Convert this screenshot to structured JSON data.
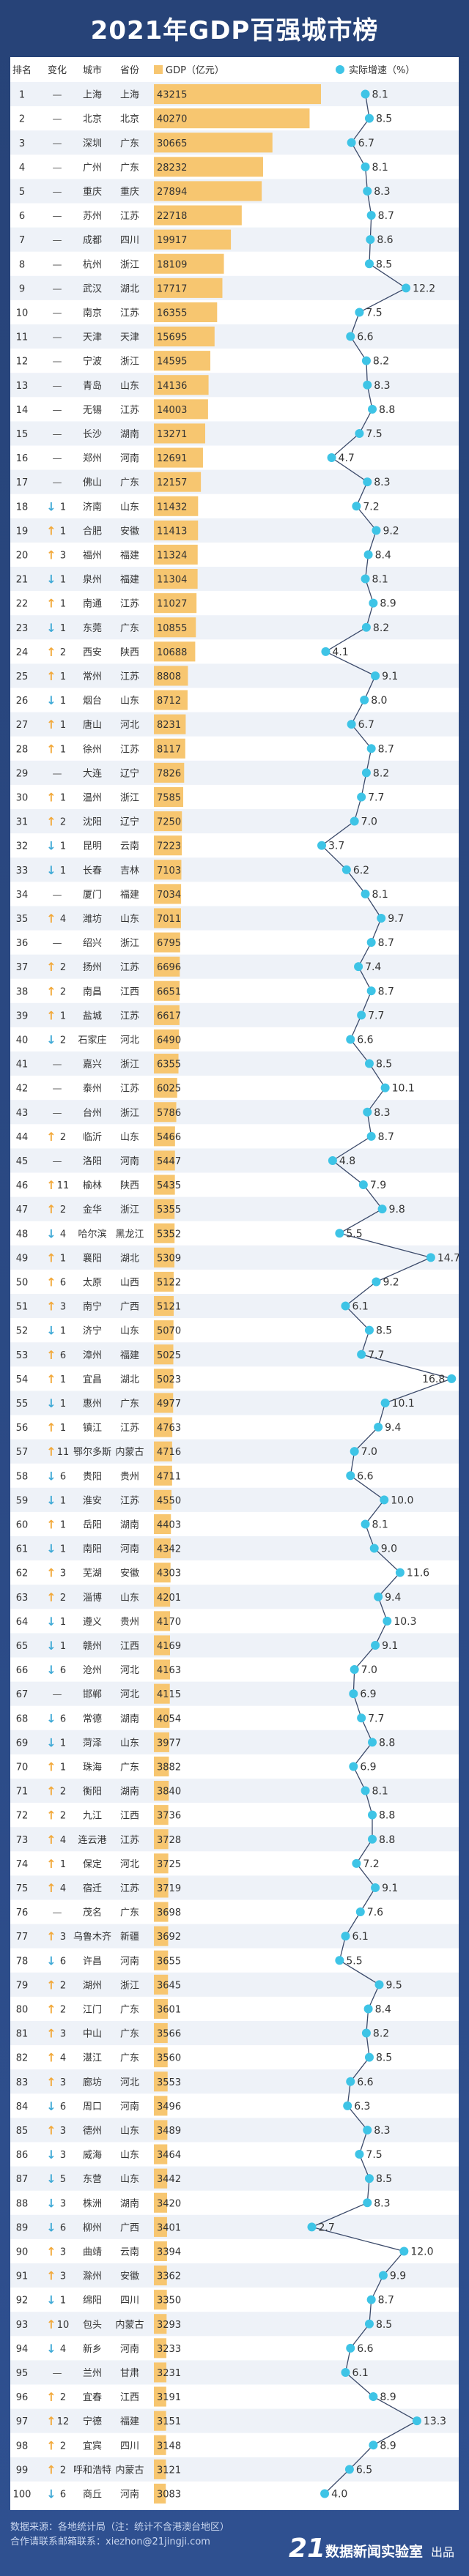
{
  "title": "2021年GDP百强城市榜",
  "colors": {
    "bar": "#f7c670",
    "line": "#3b4a6a",
    "dot": "#3ec4e6",
    "bg": "#2b4a84"
  },
  "footer": {
    "source": "数据来源：各地统计局（注：统计不含港澳台地区）",
    "contact": "合作请联系邮箱联系：xiezhon@21jingji.com",
    "logo_mark": "21",
    "logo_text": "数据新闻实验室",
    "logo_suffix": "出品"
  },
  "chart_data": {
    "type": "bar",
    "title": "2021年GDP百强城市榜",
    "headers": [
      "排名",
      "变化",
      "城市",
      "省份",
      "GDP（亿元）",
      "实际增速（%）"
    ],
    "legend": [
      {
        "name": "GDP（亿元）",
        "marker": "bar"
      },
      {
        "name": "实际增速（%）",
        "marker": "dot"
      }
    ],
    "change_legend": {
      "up": "上升",
      "down": "下降",
      "same": "—"
    },
    "rows": [
      {
        "rank": 1,
        "change": "—",
        "city": "上海",
        "province": "上海",
        "gdp": 43215,
        "growth": 8.1
      },
      {
        "rank": 2,
        "change": "—",
        "city": "北京",
        "province": "北京",
        "gdp": 40270,
        "growth": 8.5
      },
      {
        "rank": 3,
        "change": "—",
        "city": "深圳",
        "province": "广东",
        "gdp": 30665,
        "growth": 6.7
      },
      {
        "rank": 4,
        "change": "—",
        "city": "广州",
        "province": "广东",
        "gdp": 28232,
        "growth": 8.1
      },
      {
        "rank": 5,
        "change": "—",
        "city": "重庆",
        "province": "重庆",
        "gdp": 27894,
        "growth": 8.3
      },
      {
        "rank": 6,
        "change": "—",
        "city": "苏州",
        "province": "江苏",
        "gdp": 22718,
        "growth": 8.7
      },
      {
        "rank": 7,
        "change": "—",
        "city": "成都",
        "province": "四川",
        "gdp": 19917,
        "growth": 8.6
      },
      {
        "rank": 8,
        "change": "—",
        "city": "杭州",
        "province": "浙江",
        "gdp": 18109,
        "growth": 8.5
      },
      {
        "rank": 9,
        "change": "—",
        "city": "武汉",
        "province": "湖北",
        "gdp": 17717,
        "growth": 12.2
      },
      {
        "rank": 10,
        "change": "—",
        "city": "南京",
        "province": "江苏",
        "gdp": 16355,
        "growth": 7.5
      },
      {
        "rank": 11,
        "change": "—",
        "city": "天津",
        "province": "天津",
        "gdp": 15695,
        "growth": 6.6
      },
      {
        "rank": 12,
        "change": "—",
        "city": "宁波",
        "province": "浙江",
        "gdp": 14595,
        "growth": 8.2
      },
      {
        "rank": 13,
        "change": "—",
        "city": "青岛",
        "province": "山东",
        "gdp": 14136,
        "growth": 8.3
      },
      {
        "rank": 14,
        "change": "—",
        "city": "无锡",
        "province": "江苏",
        "gdp": 14003,
        "growth": 8.8
      },
      {
        "rank": 15,
        "change": "—",
        "city": "长沙",
        "province": "湖南",
        "gdp": 13271,
        "growth": 7.5
      },
      {
        "rank": 16,
        "change": "—",
        "city": "郑州",
        "province": "河南",
        "gdp": 12691,
        "growth": 4.7
      },
      {
        "rank": 17,
        "change": "—",
        "city": "佛山",
        "province": "广东",
        "gdp": 12157,
        "growth": 8.3
      },
      {
        "rank": 18,
        "change": "↓1",
        "city": "济南",
        "province": "山东",
        "gdp": 11432,
        "growth": 7.2
      },
      {
        "rank": 19,
        "change": "↑1",
        "city": "合肥",
        "province": "安徽",
        "gdp": 11413,
        "growth": 9.2
      },
      {
        "rank": 20,
        "change": "↑3",
        "city": "福州",
        "province": "福建",
        "gdp": 11324,
        "growth": 8.4
      },
      {
        "rank": 21,
        "change": "↓1",
        "city": "泉州",
        "province": "福建",
        "gdp": 11304,
        "growth": 8.1
      },
      {
        "rank": 22,
        "change": "↑1",
        "city": "南通",
        "province": "江苏",
        "gdp": 11027,
        "growth": 8.9
      },
      {
        "rank": 23,
        "change": "↓1",
        "city": "东莞",
        "province": "广东",
        "gdp": 10855,
        "growth": 8.2
      },
      {
        "rank": 24,
        "change": "↑2",
        "city": "西安",
        "province": "陕西",
        "gdp": 10688,
        "growth": 4.1
      },
      {
        "rank": 25,
        "change": "↑1",
        "city": "常州",
        "province": "江苏",
        "gdp": 8808,
        "growth": 9.1
      },
      {
        "rank": 26,
        "change": "↓1",
        "city": "烟台",
        "province": "山东",
        "gdp": 8712,
        "growth": 8.0
      },
      {
        "rank": 27,
        "change": "↑1",
        "city": "唐山",
        "province": "河北",
        "gdp": 8231,
        "growth": 6.7
      },
      {
        "rank": 28,
        "change": "↑1",
        "city": "徐州",
        "province": "江苏",
        "gdp": 8117,
        "growth": 8.7
      },
      {
        "rank": 29,
        "change": "—",
        "city": "大连",
        "province": "辽宁",
        "gdp": 7826,
        "growth": 8.2
      },
      {
        "rank": 30,
        "change": "↑1",
        "city": "温州",
        "province": "浙江",
        "gdp": 7585,
        "growth": 7.7
      },
      {
        "rank": 31,
        "change": "↑2",
        "city": "沈阳",
        "province": "辽宁",
        "gdp": 7250,
        "growth": 7.0
      },
      {
        "rank": 32,
        "change": "↓1",
        "city": "昆明",
        "province": "云南",
        "gdp": 7223,
        "growth": 3.7
      },
      {
        "rank": 33,
        "change": "↓1",
        "city": "长春",
        "province": "吉林",
        "gdp": 7103,
        "growth": 6.2
      },
      {
        "rank": 34,
        "change": "—",
        "city": "厦门",
        "province": "福建",
        "gdp": 7034,
        "growth": 8.1
      },
      {
        "rank": 35,
        "change": "↑4",
        "city": "潍坊",
        "province": "山东",
        "gdp": 7011,
        "growth": 9.7
      },
      {
        "rank": 36,
        "change": "—",
        "city": "绍兴",
        "province": "浙江",
        "gdp": 6795,
        "growth": 8.7
      },
      {
        "rank": 37,
        "change": "↑2",
        "city": "扬州",
        "province": "江苏",
        "gdp": 6696,
        "growth": 7.4
      },
      {
        "rank": 38,
        "change": "↑2",
        "city": "南昌",
        "province": "江西",
        "gdp": 6651,
        "growth": 8.7
      },
      {
        "rank": 39,
        "change": "↑1",
        "city": "盐城",
        "province": "江苏",
        "gdp": 6617,
        "growth": 7.7
      },
      {
        "rank": 40,
        "change": "↓2",
        "city": "石家庄",
        "province": "河北",
        "gdp": 6490,
        "growth": 6.6
      },
      {
        "rank": 41,
        "change": "—",
        "city": "嘉兴",
        "province": "浙江",
        "gdp": 6355,
        "growth": 8.5
      },
      {
        "rank": 42,
        "change": "—",
        "city": "泰州",
        "province": "江苏",
        "gdp": 6025,
        "growth": 10.1
      },
      {
        "rank": 43,
        "change": "—",
        "city": "台州",
        "province": "浙江",
        "gdp": 5786,
        "growth": 8.3
      },
      {
        "rank": 44,
        "change": "↑2",
        "city": "临沂",
        "province": "山东",
        "gdp": 5466,
        "growth": 8.7
      },
      {
        "rank": 45,
        "change": "—",
        "city": "洛阳",
        "province": "河南",
        "gdp": 5447,
        "growth": 4.8
      },
      {
        "rank": 46,
        "change": "↑11",
        "city": "榆林",
        "province": "陕西",
        "gdp": 5435,
        "growth": 7.9
      },
      {
        "rank": 47,
        "change": "↑2",
        "city": "金华",
        "province": "浙江",
        "gdp": 5355,
        "growth": 9.8
      },
      {
        "rank": 48,
        "change": "↓4",
        "city": "哈尔滨",
        "province": "黑龙江",
        "gdp": 5352,
        "growth": 5.5
      },
      {
        "rank": 49,
        "change": "↑1",
        "city": "襄阳",
        "province": "湖北",
        "gdp": 5309,
        "growth": 14.7
      },
      {
        "rank": 50,
        "change": "↑6",
        "city": "太原",
        "province": "山西",
        "gdp": 5122,
        "growth": 9.2
      },
      {
        "rank": 51,
        "change": "↑3",
        "city": "南宁",
        "province": "广西",
        "gdp": 5121,
        "growth": 6.1
      },
      {
        "rank": 52,
        "change": "↓1",
        "city": "济宁",
        "province": "山东",
        "gdp": 5070,
        "growth": 8.5
      },
      {
        "rank": 53,
        "change": "↑6",
        "city": "漳州",
        "province": "福建",
        "gdp": 5025,
        "growth": 7.7
      },
      {
        "rank": 54,
        "change": "↑1",
        "city": "宜昌",
        "province": "湖北",
        "gdp": 5023,
        "growth": 16.8
      },
      {
        "rank": 55,
        "change": "↓1",
        "city": "惠州",
        "province": "广东",
        "gdp": 4977,
        "growth": 10.1
      },
      {
        "rank": 56,
        "change": "↑1",
        "city": "镇江",
        "province": "江苏",
        "gdp": 4763,
        "growth": 9.4
      },
      {
        "rank": 57,
        "change": "↑11",
        "city": "鄂尔多斯",
        "province": "内蒙古",
        "gdp": 4716,
        "growth": 7.0
      },
      {
        "rank": 58,
        "change": "↓6",
        "city": "贵阳",
        "province": "贵州",
        "gdp": 4711,
        "growth": 6.6
      },
      {
        "rank": 59,
        "change": "↓1",
        "city": "淮安",
        "province": "江苏",
        "gdp": 4550,
        "growth": 10.0
      },
      {
        "rank": 60,
        "change": "↑1",
        "city": "岳阳",
        "province": "湖南",
        "gdp": 4403,
        "growth": 8.1
      },
      {
        "rank": 61,
        "change": "↓1",
        "city": "南阳",
        "province": "河南",
        "gdp": 4342,
        "growth": 9.0
      },
      {
        "rank": 62,
        "change": "↑3",
        "city": "芜湖",
        "province": "安徽",
        "gdp": 4303,
        "growth": 11.6
      },
      {
        "rank": 63,
        "change": "↑2",
        "city": "淄博",
        "province": "山东",
        "gdp": 4201,
        "growth": 9.4
      },
      {
        "rank": 64,
        "change": "↓1",
        "city": "遵义",
        "province": "贵州",
        "gdp": 4170,
        "growth": 10.3
      },
      {
        "rank": 65,
        "change": "↓1",
        "city": "赣州",
        "province": "江西",
        "gdp": 4169,
        "growth": 9.1
      },
      {
        "rank": 66,
        "change": "↓6",
        "city": "沧州",
        "province": "河北",
        "gdp": 4163,
        "growth": 7.0
      },
      {
        "rank": 67,
        "change": "—",
        "city": "邯郸",
        "province": "河北",
        "gdp": 4115,
        "growth": 6.9
      },
      {
        "rank": 68,
        "change": "↓6",
        "city": "常德",
        "province": "湖南",
        "gdp": 4054,
        "growth": 7.7
      },
      {
        "rank": 69,
        "change": "↓1",
        "city": "菏泽",
        "province": "山东",
        "gdp": 3977,
        "growth": 8.8
      },
      {
        "rank": 70,
        "change": "↑1",
        "city": "珠海",
        "province": "广东",
        "gdp": 3882,
        "growth": 6.9
      },
      {
        "rank": 71,
        "change": "↑2",
        "city": "衡阳",
        "province": "湖南",
        "gdp": 3840,
        "growth": 8.1
      },
      {
        "rank": 72,
        "change": "↑2",
        "city": "九江",
        "province": "江西",
        "gdp": 3736,
        "growth": 8.8
      },
      {
        "rank": 73,
        "change": "↑4",
        "city": "连云港",
        "province": "江苏",
        "gdp": 3728,
        "growth": 8.8
      },
      {
        "rank": 74,
        "change": "↑1",
        "city": "保定",
        "province": "河北",
        "gdp": 3725,
        "growth": 7.2
      },
      {
        "rank": 75,
        "change": "↑4",
        "city": "宿迁",
        "province": "江苏",
        "gdp": 3719,
        "growth": 9.1
      },
      {
        "rank": 76,
        "change": "—",
        "city": "茂名",
        "province": "广东",
        "gdp": 3698,
        "growth": 7.6
      },
      {
        "rank": 77,
        "change": "↑3",
        "city": "乌鲁木齐",
        "province": "新疆",
        "gdp": 3692,
        "growth": 6.1
      },
      {
        "rank": 78,
        "change": "↓6",
        "city": "许昌",
        "province": "河南",
        "gdp": 3655,
        "growth": 5.5
      },
      {
        "rank": 79,
        "change": "↑2",
        "city": "湖州",
        "province": "浙江",
        "gdp": 3645,
        "growth": 9.5
      },
      {
        "rank": 80,
        "change": "↑2",
        "city": "江门",
        "province": "广东",
        "gdp": 3601,
        "growth": 8.4
      },
      {
        "rank": 81,
        "change": "↑3",
        "city": "中山",
        "province": "广东",
        "gdp": 3566,
        "growth": 8.2
      },
      {
        "rank": 82,
        "change": "↑4",
        "city": "湛江",
        "province": "广东",
        "gdp": 3560,
        "growth": 8.5
      },
      {
        "rank": 83,
        "change": "↑3",
        "city": "廊坊",
        "province": "河北",
        "gdp": 3553,
        "growth": 6.6
      },
      {
        "rank": 84,
        "change": "↓6",
        "city": "周口",
        "province": "河南",
        "gdp": 3496,
        "growth": 6.3
      },
      {
        "rank": 85,
        "change": "↑3",
        "city": "德州",
        "province": "山东",
        "gdp": 3489,
        "growth": 8.3
      },
      {
        "rank": 86,
        "change": "↓3",
        "city": "威海",
        "province": "山东",
        "gdp": 3464,
        "growth": 7.5
      },
      {
        "rank": 87,
        "change": "↓5",
        "city": "东营",
        "province": "山东",
        "gdp": 3442,
        "growth": 8.5
      },
      {
        "rank": 88,
        "change": "↓3",
        "city": "株洲",
        "province": "湖南",
        "gdp": 3420,
        "growth": 8.3
      },
      {
        "rank": 89,
        "change": "↓6",
        "city": "柳州",
        "province": "广西",
        "gdp": 3401,
        "growth": 2.7
      },
      {
        "rank": 90,
        "change": "↑3",
        "city": "曲靖",
        "province": "云南",
        "gdp": 3394,
        "growth": 12.0
      },
      {
        "rank": 91,
        "change": "↑3",
        "city": "滁州",
        "province": "安徽",
        "gdp": 3362,
        "growth": 9.9
      },
      {
        "rank": 92,
        "change": "↓1",
        "city": "绵阳",
        "province": "四川",
        "gdp": 3350,
        "growth": 8.7
      },
      {
        "rank": 93,
        "change": "↑10",
        "city": "包头",
        "province": "内蒙古",
        "gdp": 3293,
        "growth": 8.5
      },
      {
        "rank": 94,
        "change": "↓4",
        "city": "新乡",
        "province": "河南",
        "gdp": 3233,
        "growth": 6.6
      },
      {
        "rank": 95,
        "change": "—",
        "city": "兰州",
        "province": "甘肃",
        "gdp": 3231,
        "growth": 6.1
      },
      {
        "rank": 96,
        "change": "↑2",
        "city": "宜春",
        "province": "江西",
        "gdp": 3191,
        "growth": 8.9
      },
      {
        "rank": 97,
        "change": "↑12",
        "city": "宁德",
        "province": "福建",
        "gdp": 3151,
        "growth": 13.3
      },
      {
        "rank": 98,
        "change": "↑2",
        "city": "宜宾",
        "province": "四川",
        "gdp": 3148,
        "growth": 8.9
      },
      {
        "rank": 99,
        "change": "↑2",
        "city": "呼和浩特",
        "province": "内蒙古",
        "gdp": 3121,
        "growth": 6.5
      },
      {
        "rank": 100,
        "change": "↓6",
        "city": "商丘",
        "province": "河南",
        "gdp": 3083,
        "growth": 4.0
      }
    ]
  }
}
